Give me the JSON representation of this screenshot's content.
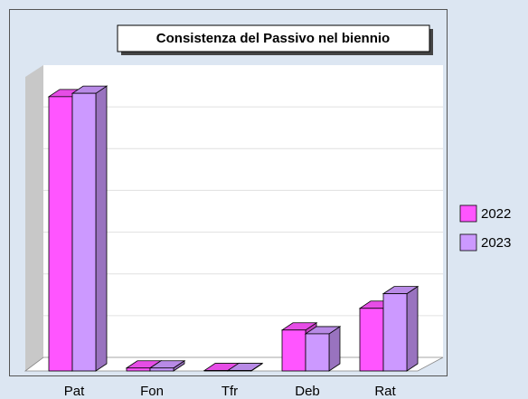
{
  "chart_data": {
    "type": "bar3d",
    "title": "Consistenza del Passivo nel biennio",
    "categories": [
      "Pat",
      "Fon",
      "Tfr",
      "Deb",
      "Rat"
    ],
    "series": [
      {
        "name": "2022",
        "color": "#ff55ff",
        "values": [
          6.57,
          0.07,
          0.01,
          0.98,
          1.5
        ]
      },
      {
        "name": "2023",
        "color": "#cc99ff",
        "values": [
          6.65,
          0.07,
          0.01,
          0.89,
          1.85
        ]
      }
    ],
    "ylim": [
      0,
      7
    ],
    "yticks": [
      0,
      1,
      2,
      3,
      4,
      5,
      6,
      7
    ],
    "grid": true,
    "legend": "right"
  }
}
